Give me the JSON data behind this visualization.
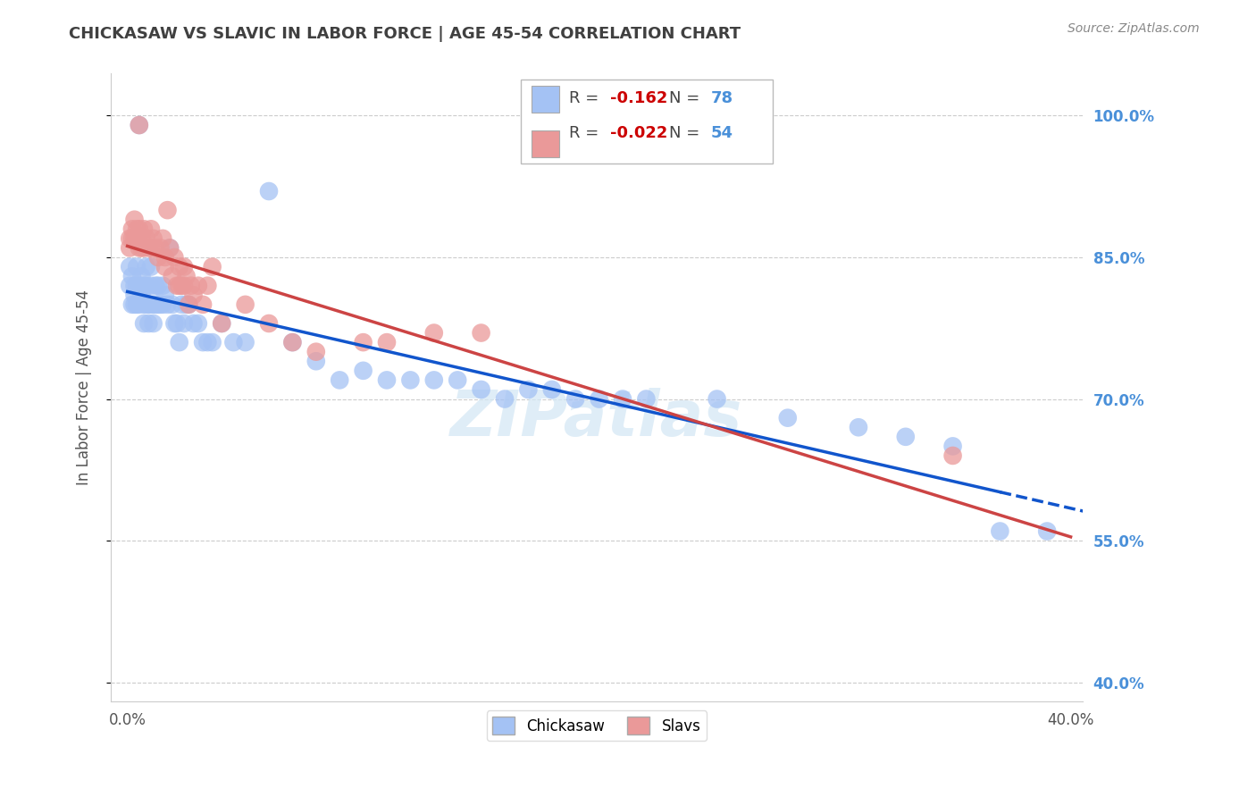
{
  "title": "CHICKASAW VS SLAVIC IN LABOR FORCE | AGE 45-54 CORRELATION CHART",
  "source": "Source: ZipAtlas.com",
  "ylabel": "In Labor Force | Age 45-54",
  "xmin": 0.0,
  "xmax": 0.4,
  "ymin": 0.38,
  "ymax": 1.045,
  "ytick_vals": [
    0.4,
    0.55,
    0.7,
    0.85,
    1.0
  ],
  "ytick_labels": [
    "40.0%",
    "55.0%",
    "70.0%",
    "85.0%",
    "100.0%"
  ],
  "xtick_vals": [
    0.0,
    0.05,
    0.1,
    0.15,
    0.2,
    0.25,
    0.3,
    0.35,
    0.4
  ],
  "xtick_labels": [
    "0.0%",
    "",
    "",
    "",
    "",
    "",
    "",
    "",
    "40.0%"
  ],
  "legend_R_blue": "-0.162",
  "legend_N_blue": "78",
  "legend_R_pink": "-0.022",
  "legend_N_pink": "54",
  "blue_color": "#a4c2f4",
  "pink_color": "#ea9999",
  "blue_line_color": "#1155cc",
  "pink_line_color": "#cc4444",
  "watermark": "ZIPatlas",
  "blue_x": [
    0.001,
    0.001,
    0.002,
    0.002,
    0.003,
    0.003,
    0.003,
    0.004,
    0.004,
    0.004,
    0.005,
    0.005,
    0.005,
    0.006,
    0.006,
    0.007,
    0.007,
    0.007,
    0.008,
    0.008,
    0.008,
    0.009,
    0.009,
    0.01,
    0.01,
    0.01,
    0.011,
    0.011,
    0.012,
    0.012,
    0.013,
    0.013,
    0.014,
    0.015,
    0.015,
    0.016,
    0.017,
    0.018,
    0.019,
    0.02,
    0.021,
    0.022,
    0.023,
    0.024,
    0.025,
    0.026,
    0.028,
    0.03,
    0.032,
    0.034,
    0.036,
    0.04,
    0.045,
    0.05,
    0.06,
    0.07,
    0.08,
    0.09,
    0.1,
    0.11,
    0.12,
    0.13,
    0.14,
    0.15,
    0.16,
    0.17,
    0.18,
    0.19,
    0.2,
    0.21,
    0.22,
    0.25,
    0.28,
    0.31,
    0.33,
    0.35,
    0.37,
    0.39
  ],
  "blue_y": [
    0.84,
    0.82,
    0.83,
    0.8,
    0.82,
    0.81,
    0.8,
    0.84,
    0.82,
    0.8,
    0.82,
    0.8,
    0.99,
    0.83,
    0.81,
    0.82,
    0.8,
    0.78,
    0.84,
    0.82,
    0.8,
    0.8,
    0.78,
    0.84,
    0.82,
    0.8,
    0.8,
    0.78,
    0.82,
    0.8,
    0.82,
    0.8,
    0.8,
    0.82,
    0.8,
    0.81,
    0.8,
    0.86,
    0.8,
    0.78,
    0.78,
    0.76,
    0.8,
    0.78,
    0.8,
    0.8,
    0.78,
    0.78,
    0.76,
    0.76,
    0.76,
    0.78,
    0.76,
    0.76,
    0.92,
    0.76,
    0.74,
    0.72,
    0.73,
    0.72,
    0.72,
    0.72,
    0.72,
    0.71,
    0.7,
    0.71,
    0.71,
    0.7,
    0.7,
    0.7,
    0.7,
    0.7,
    0.68,
    0.67,
    0.66,
    0.65,
    0.56,
    0.56
  ],
  "pink_x": [
    0.001,
    0.001,
    0.002,
    0.002,
    0.003,
    0.003,
    0.004,
    0.004,
    0.005,
    0.005,
    0.005,
    0.006,
    0.006,
    0.007,
    0.007,
    0.008,
    0.009,
    0.01,
    0.01,
    0.011,
    0.012,
    0.013,
    0.014,
    0.015,
    0.016,
    0.016,
    0.017,
    0.018,
    0.019,
    0.02,
    0.021,
    0.022,
    0.022,
    0.023,
    0.024,
    0.024,
    0.025,
    0.026,
    0.027,
    0.028,
    0.03,
    0.032,
    0.034,
    0.036,
    0.04,
    0.05,
    0.06,
    0.07,
    0.08,
    0.1,
    0.11,
    0.13,
    0.15,
    0.35
  ],
  "pink_y": [
    0.87,
    0.86,
    0.88,
    0.87,
    0.89,
    0.87,
    0.88,
    0.87,
    0.88,
    0.86,
    0.99,
    0.87,
    0.86,
    0.88,
    0.86,
    0.87,
    0.86,
    0.88,
    0.86,
    0.87,
    0.86,
    0.85,
    0.86,
    0.87,
    0.85,
    0.84,
    0.9,
    0.86,
    0.83,
    0.85,
    0.82,
    0.84,
    0.82,
    0.82,
    0.82,
    0.84,
    0.83,
    0.8,
    0.82,
    0.81,
    0.82,
    0.8,
    0.82,
    0.84,
    0.78,
    0.8,
    0.78,
    0.76,
    0.75,
    0.76,
    0.76,
    0.77,
    0.77,
    0.64
  ],
  "background_color": "#ffffff",
  "grid_color": "#cccccc",
  "title_color": "#404040",
  "right_axis_color": "#4a90d9",
  "source_color": "#888888"
}
